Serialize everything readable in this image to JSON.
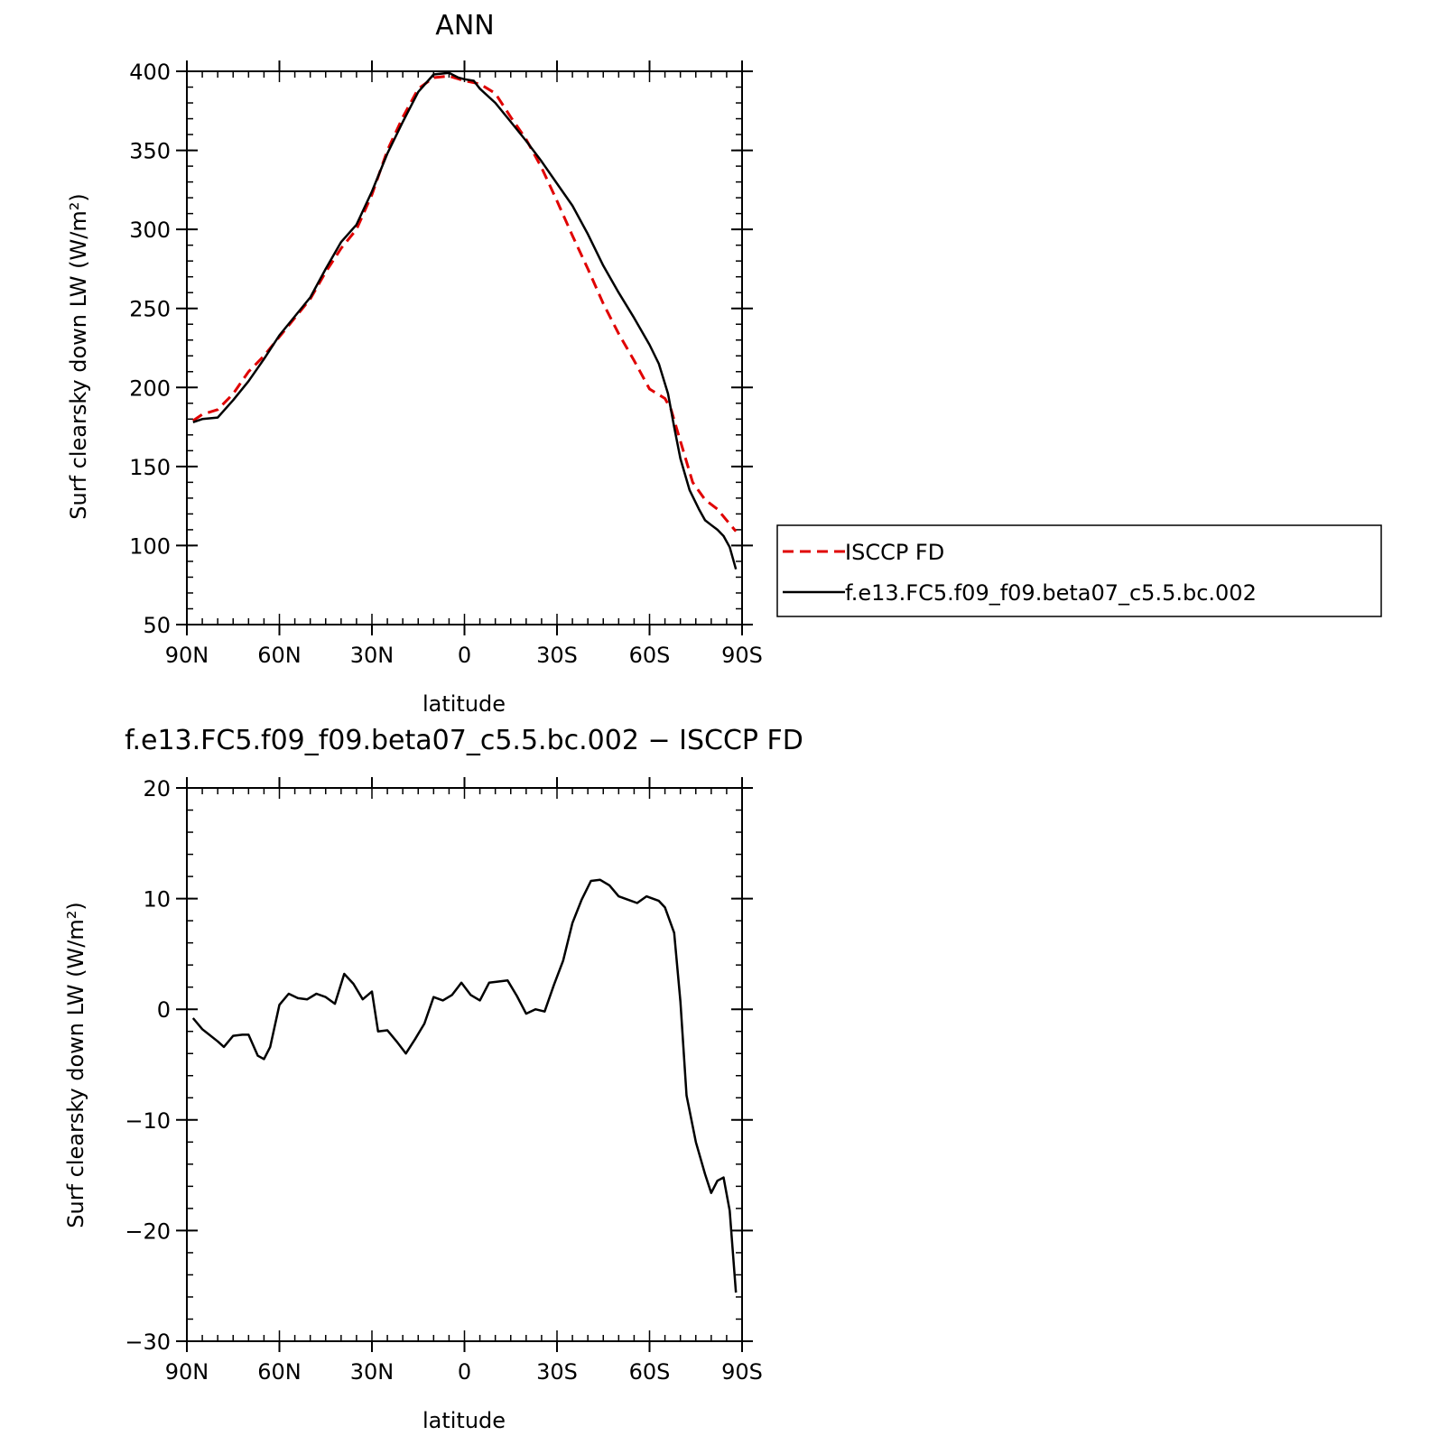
{
  "chart_data": [
    {
      "type": "line",
      "title": "ANN",
      "xlabel": "latitude",
      "ylabel": "Surf clearsky down LW (W/m²)",
      "xlim": [
        90,
        -90
      ],
      "ylim": [
        50,
        400
      ],
      "x_ticks": [
        {
          "value": 90,
          "label": "90N"
        },
        {
          "value": 60,
          "label": "60N"
        },
        {
          "value": 30,
          "label": "30N"
        },
        {
          "value": 0,
          "label": "0"
        },
        {
          "value": -30,
          "label": "30S"
        },
        {
          "value": -60,
          "label": "60S"
        },
        {
          "value": -90,
          "label": "90S"
        }
      ],
      "y_ticks": [
        50,
        100,
        150,
        200,
        250,
        300,
        350,
        400
      ],
      "legend": {
        "placement": "right of plot"
      },
      "series": [
        {
          "name": "ISCCP FD",
          "color": "#e00000",
          "dash": "dashed",
          "x": [
            88,
            85,
            80,
            75,
            70,
            65,
            60,
            55,
            50,
            45,
            40,
            35,
            30,
            25,
            20,
            15,
            10,
            5,
            0,
            -5,
            -10,
            -15,
            -20,
            -25,
            -30,
            -35,
            -40,
            -45,
            -50,
            -55,
            -60,
            -65,
            -67,
            -70,
            -74,
            -78,
            -82,
            -85,
            -88
          ],
          "y": [
            179,
            183,
            186,
            196,
            210,
            220,
            232,
            244,
            256,
            273,
            288,
            300,
            322,
            350,
            371,
            389,
            396,
            397,
            394,
            392,
            386,
            371,
            357,
            339,
            318,
            296,
            275,
            253,
            234,
            217,
            199,
            193,
            186,
            166,
            140,
            129,
            123,
            116,
            109
          ]
        },
        {
          "name": "f.e13.FC5.f09_f09.beta07_c5.5.bc.002",
          "color": "#000000",
          "dash": "solid",
          "x": [
            88,
            85,
            80,
            75,
            70,
            65,
            60,
            55,
            50,
            45,
            40,
            35,
            30,
            25,
            20,
            15,
            10,
            5,
            2,
            0,
            -3,
            -5,
            -10,
            -15,
            -20,
            -25,
            -30,
            -35,
            -40,
            -45,
            -50,
            -55,
            -60,
            -63,
            -66,
            -68,
            -70,
            -73,
            -76,
            -78,
            -80,
            -82,
            -84,
            -86,
            -88
          ],
          "y": [
            178,
            180,
            181,
            192,
            204,
            218,
            233,
            245,
            257,
            275,
            292,
            303,
            324,
            348,
            368,
            387,
            398,
            399,
            396,
            395,
            394,
            389,
            380,
            368,
            356,
            343,
            329,
            315,
            297,
            277,
            260,
            244,
            227,
            215,
            196,
            175,
            155,
            135,
            123,
            116,
            113,
            110,
            106,
            99,
            85
          ]
        }
      ]
    },
    {
      "type": "line",
      "title": "f.e13.FC5.f09_f09.beta07_c5.5.bc.002 − ISCCP FD",
      "xlabel": "latitude",
      "ylabel": "Surf clearsky down LW (W/m²)",
      "xlim": [
        90,
        -90
      ],
      "ylim": [
        -30,
        20
      ],
      "x_ticks": [
        {
          "value": 90,
          "label": "90N"
        },
        {
          "value": 60,
          "label": "60N"
        },
        {
          "value": 30,
          "label": "30N"
        },
        {
          "value": 0,
          "label": "0"
        },
        {
          "value": -30,
          "label": "30S"
        },
        {
          "value": -60,
          "label": "60S"
        },
        {
          "value": -90,
          "label": "90S"
        }
      ],
      "y_ticks": [
        {
          "value": 20,
          "label": "20"
        },
        {
          "value": 10,
          "label": "10"
        },
        {
          "value": 0,
          "label": "0"
        },
        {
          "value": -10,
          "label": "−10"
        },
        {
          "value": -20,
          "label": "−20"
        },
        {
          "value": -30,
          "label": "−30"
        }
      ],
      "series": [
        {
          "color": "#000000",
          "dash": "solid",
          "x": [
            88,
            85,
            80,
            78,
            75,
            72,
            70,
            67,
            65,
            63,
            60,
            57,
            54,
            51,
            48,
            45,
            42,
            39,
            36,
            33,
            30,
            28,
            25,
            22,
            19,
            16,
            13,
            10,
            7,
            4,
            1,
            -2,
            -5,
            -8,
            -11,
            -14,
            -17,
            -20,
            -23,
            -26,
            -29,
            -32,
            -35,
            -38,
            -41,
            -44,
            -47,
            -50,
            -53,
            -56,
            -59,
            -61,
            -63,
            -65,
            -68,
            -70,
            -72,
            -75,
            -78,
            -80,
            -82,
            -84,
            -86,
            -88
          ],
          "y": [
            -0.8,
            -1.8,
            -2.9,
            -3.4,
            -2.4,
            -2.3,
            -2.3,
            -4.2,
            -4.5,
            -3.4,
            0.4,
            1.4,
            1.0,
            0.9,
            1.4,
            1.1,
            0.5,
            3.2,
            2.3,
            0.9,
            1.6,
            -2.0,
            -1.9,
            -2.9,
            -4.0,
            -2.7,
            -1.3,
            1.1,
            0.8,
            1.3,
            2.4,
            1.3,
            0.8,
            2.4,
            2.5,
            2.6,
            1.2,
            -0.4,
            0.0,
            -0.2,
            2.2,
            4.4,
            7.8,
            9.9,
            11.6,
            11.7,
            11.2,
            10.2,
            9.9,
            9.6,
            10.2,
            10.0,
            9.8,
            9.2,
            6.9,
            0.7,
            -7.8,
            -12.0,
            -14.9,
            -16.6,
            -15.5,
            -15.2,
            -18.2,
            -25.6
          ]
        }
      ]
    }
  ]
}
